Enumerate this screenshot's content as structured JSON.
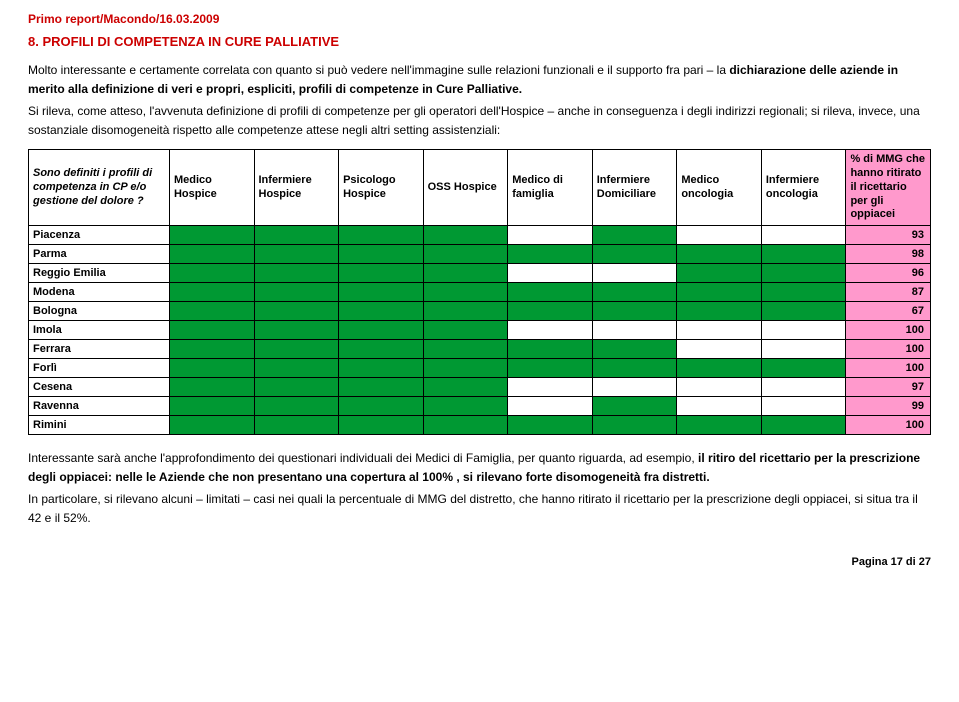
{
  "header": "Primo report/Macondo/16.03.2009",
  "section_title": "8.  PROFILI DI COMPETENZA IN CURE PALLIATIVE",
  "para1_html": "Molto interessante e certamente correlata con quanto si può vedere nell'immagine sulle relazioni funzionali e il supporto fra pari – la <b>dichiarazione delle aziende in merito alla definizione di veri e propri, espliciti, profili di competenze in Cure Palliative.</b>",
  "para2_html": "Si rileva, come atteso, l'avvenuta definizione di profili di competenze per gli operatori dell'Hospice – anche in conseguenza  i degli indirizzi regionali; si rileva, invece,  una sostanziale disomogeneità rispetto alle competenze attese negli altri setting assistenziali:",
  "table": {
    "corner": "Sono definiti i profili di competenza in CP e/o gestione del dolore ?",
    "columns": [
      "Medico Hospice",
      "Infermiere Hospice",
      "Psicologo Hospice",
      "OSS Hospice",
      "Medico di famiglia",
      "Infermiere Domiciliare",
      "Medico oncologia",
      "Infermiere oncologia"
    ],
    "last_col": "% di MMG che hanno ritirato il ricettario per gli oppiacei",
    "rows": [
      {
        "name": "Piacenza",
        "cells": [
          1,
          1,
          1,
          1,
          0,
          1,
          0,
          0
        ],
        "pct": "93"
      },
      {
        "name": "Parma",
        "cells": [
          1,
          1,
          1,
          1,
          1,
          1,
          1,
          1
        ],
        "pct": "98"
      },
      {
        "name": "Reggio Emilia",
        "cells": [
          1,
          1,
          1,
          1,
          0,
          0,
          1,
          1
        ],
        "pct": "96"
      },
      {
        "name": "Modena",
        "cells": [
          1,
          1,
          1,
          1,
          1,
          1,
          1,
          1
        ],
        "pct": "87"
      },
      {
        "name": "Bologna",
        "cells": [
          1,
          1,
          1,
          1,
          1,
          1,
          1,
          1
        ],
        "pct": "67"
      },
      {
        "name": "Imola",
        "cells": [
          1,
          1,
          1,
          1,
          0,
          0,
          0,
          0
        ],
        "pct": "100"
      },
      {
        "name": "Ferrara",
        "cells": [
          1,
          1,
          1,
          1,
          1,
          1,
          0,
          0
        ],
        "pct": "100"
      },
      {
        "name": "Forlì",
        "cells": [
          1,
          1,
          1,
          1,
          1,
          1,
          1,
          1
        ],
        "pct": "100"
      },
      {
        "name": "Cesena",
        "cells": [
          1,
          1,
          1,
          1,
          0,
          0,
          0,
          0
        ],
        "pct": "97"
      },
      {
        "name": "Ravenna",
        "cells": [
          1,
          1,
          1,
          1,
          0,
          1,
          0,
          0
        ],
        "pct": "99"
      },
      {
        "name": "Rimini",
        "cells": [
          1,
          1,
          1,
          1,
          1,
          1,
          1,
          1
        ],
        "pct": "100"
      }
    ],
    "colors": {
      "on": "#009933",
      "off": "#ffffff",
      "pink": "#ff99cc",
      "border": "#000000"
    }
  },
  "para3_html": "Interessante sarà anche l'approfondimento  dei questionari individuali dei Medici di Famiglia, per quanto riguarda, ad esempio, <b> il ritiro del ricettario per la prescrizione degli oppiacei: nelle  le Aziende che non presentano una copertura al  100% , si rilevano forte disomogeneità  fra distretti.</b>",
  "para4_html": "In particolare,  si rilevano alcuni – limitati – casi nei quali la percentuale di MMG del distretto, che hanno ritirato il ricettario per la prescrizione degli oppiacei, si situa tra il 42 e il 52%.",
  "footer": "Pagina 17 di 27"
}
